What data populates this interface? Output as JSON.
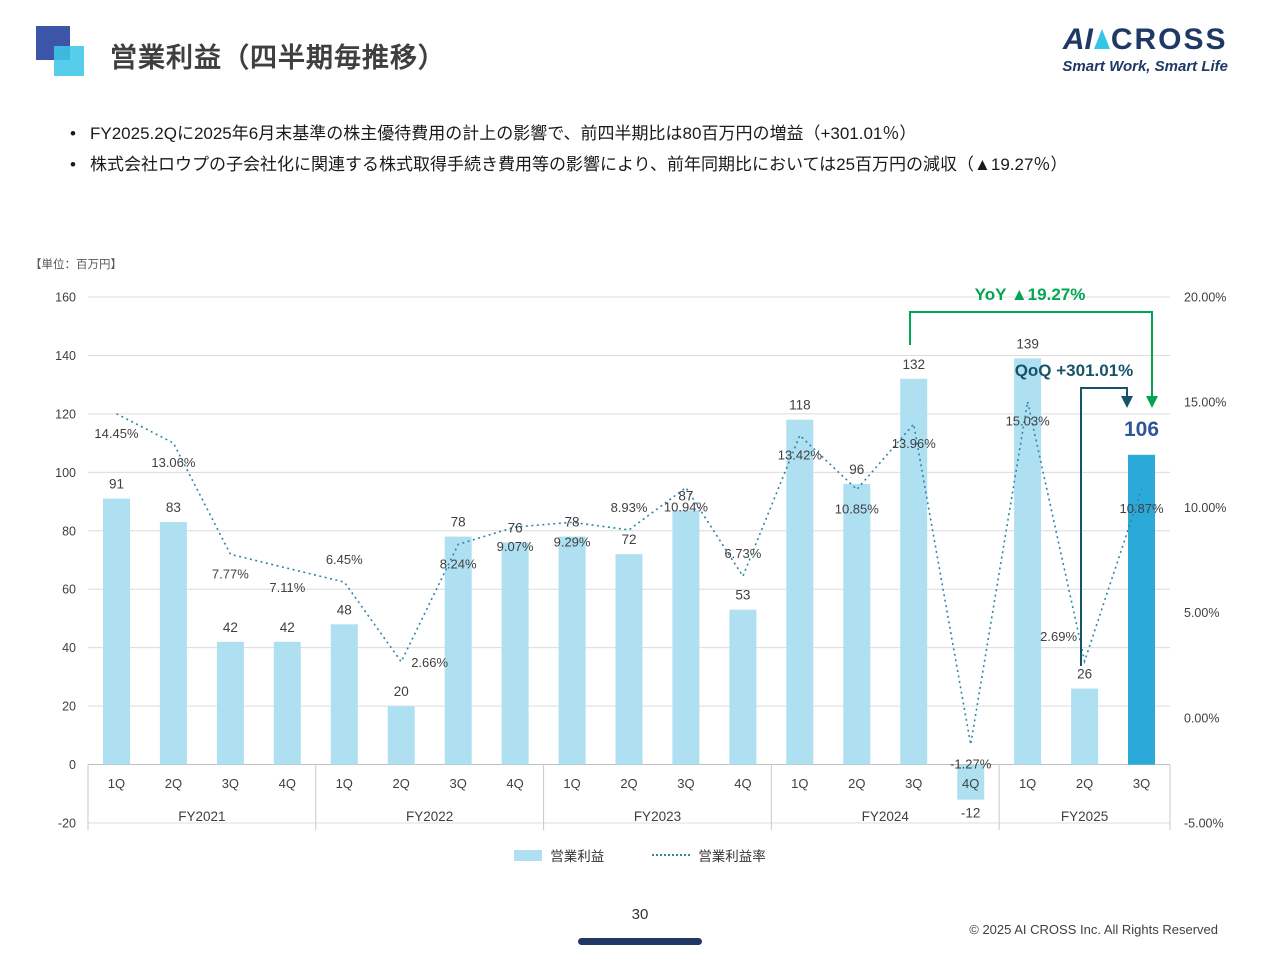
{
  "header": {
    "title": "営業利益（四半期毎推移）",
    "logo": {
      "brand_ai": "AI",
      "brand_cross": "CROSS",
      "tagline": "Smart Work, Smart Life"
    }
  },
  "bullets": [
    "FY2025.2Qに2025年6月末基準の株主優待費用の計上の影響で、前四半期比は80百万円の増益（+301.01％）",
    "株式会社ロウプの子会社化に関連する株式取得手続き費用等の影響により、前年同期比においては25百万円の減収（▲19.27％）"
  ],
  "chart_data": {
    "type": "bar",
    "title": "営業利益（四半期毎推移）",
    "unit_label": "【単位：百万円】",
    "categories": [
      "1Q",
      "2Q",
      "3Q",
      "4Q",
      "1Q",
      "2Q",
      "3Q",
      "4Q",
      "1Q",
      "2Q",
      "3Q",
      "4Q",
      "1Q",
      "2Q",
      "3Q",
      "4Q",
      "1Q",
      "2Q",
      "3Q"
    ],
    "groups": [
      {
        "label": "FY2021",
        "count": 4
      },
      {
        "label": "FY2022",
        "count": 4
      },
      {
        "label": "FY2023",
        "count": 4
      },
      {
        "label": "FY2024",
        "count": 4
      },
      {
        "label": "FY2025",
        "count": 3
      }
    ],
    "series": [
      {
        "name": "営業利益",
        "type": "bar",
        "axis": "left",
        "values": [
          91,
          83,
          42,
          42,
          48,
          20,
          78,
          76,
          78,
          72,
          87,
          53,
          118,
          96,
          132,
          -12,
          139,
          26,
          106
        ]
      },
      {
        "name": "営業利益率",
        "type": "line",
        "axis": "right",
        "values": [
          14.45,
          13.06,
          7.77,
          7.11,
          6.45,
          2.66,
          8.24,
          9.07,
          9.29,
          8.93,
          10.94,
          6.73,
          13.42,
          10.85,
          13.96,
          -1.27,
          15.03,
          2.69,
          10.87
        ],
        "labels": [
          "14.45%",
          "13.06%",
          "7.77%",
          "7.11%",
          "6.45%",
          "2.66%",
          "8.24%",
          "9.07%",
          "9.29%",
          "8.93%",
          "10.94%",
          "6.73%",
          "13.42%",
          "10.85%",
          "13.96%",
          "-1.27%",
          "15.03%",
          "2.69%",
          "10.87%"
        ],
        "label_pos": [
          "below",
          "below",
          "below",
          "below",
          "above",
          "right",
          "below",
          "below",
          "below",
          "above",
          "below",
          "above",
          "below",
          "below",
          "below",
          "below",
          "below",
          "above-left",
          "below"
        ]
      }
    ],
    "left_axis": {
      "min": -20,
      "max": 160,
      "step": 20,
      "ticks": [
        "160",
        "140",
        "120",
        "100",
        "80",
        "60",
        "40",
        "20",
        "0",
        "-20"
      ]
    },
    "right_axis": {
      "min": -5,
      "max": 20,
      "step": 5,
      "ticks": [
        "20.00%",
        "15.00%",
        "10.00%",
        "5.00%",
        "0.00%",
        "-5.00%"
      ]
    },
    "highlight_index": 18,
    "highlight_value_label": "106",
    "annotations": {
      "yoy": {
        "text": "YoY ▲19.27%",
        "color": "#00A651"
      },
      "qoq": {
        "text": "QoQ +301.01%",
        "color": "#17546A"
      }
    },
    "colors": {
      "bar": "#AEE0F2",
      "bar_highlight": "#2BA9D9",
      "line": "#2F86A6",
      "grid": "#DCDCDC",
      "zero_axis": "#BFBFBF",
      "separator": "#C9C9C9",
      "label": "#404040",
      "highlight_label": "#2F5597"
    },
    "legend_position": "bottom"
  },
  "footer": {
    "page_number": "30",
    "copyright": "© 2025 AI CROSS Inc. All Rights Reserved"
  }
}
